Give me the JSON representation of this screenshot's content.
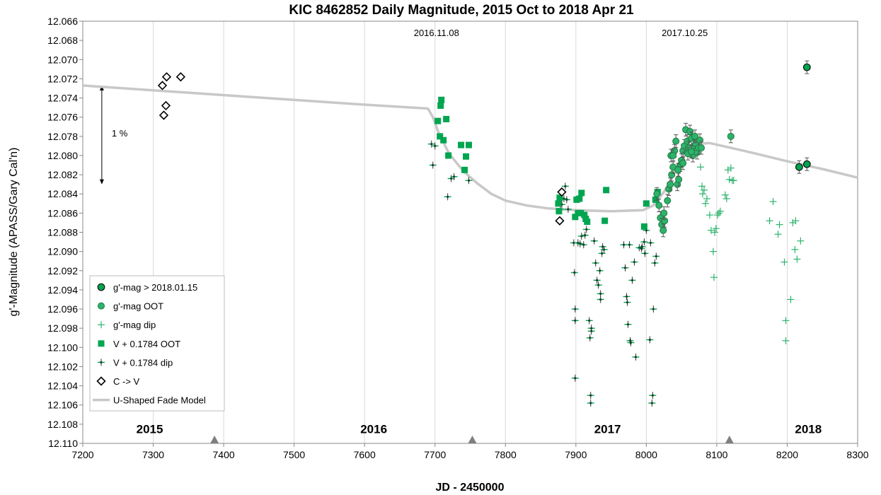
{
  "chart_data": {
    "type": "scatter",
    "title": "KIC 8462852 Daily Magnitude, 2015 Oct to 2018 Apr 21",
    "xlabel": "JD - 2450000",
    "ylabel": "g'-Magnitude  (APASS/Gary Cal'n)",
    "xlim": [
      7200,
      8300
    ],
    "ylim": [
      12.066,
      12.11
    ],
    "y_inverted": true,
    "x_ticks": [
      "7200",
      "7300",
      "7400",
      "7500",
      "7600",
      "7700",
      "7800",
      "7900",
      "8000",
      "8100",
      "8200",
      "8300"
    ],
    "y_ticks": [
      "12.066",
      "12.068",
      "12.070",
      "12.072",
      "12.074",
      "12.076",
      "12.078",
      "12.080",
      "12.082",
      "12.084",
      "12.086",
      "12.088",
      "12.090",
      "12.092",
      "12.094",
      "12.096",
      "12.098",
      "12.100",
      "12.102",
      "12.104",
      "12.106",
      "12.108",
      "12.110"
    ],
    "grid": "vertical",
    "legend_position": "bottom-left",
    "year_labels": [
      {
        "text": "2015",
        "x": 7295
      },
      {
        "text": "2016",
        "x": 7613
      },
      {
        "text": "2017",
        "x": 7945
      },
      {
        "text": "2018",
        "x": 8230
      }
    ],
    "year_markers": [
      7387,
      7753,
      8118
    ],
    "date_annotations": [
      {
        "text": "2016.11.08",
        "x": 7700
      },
      {
        "text": "2017.10.25",
        "x": 8052
      }
    ],
    "scale_bar": {
      "label": "1 %",
      "x": 7227,
      "y_top": 12.0727,
      "y_bottom": 12.083
    },
    "series": [
      {
        "name": "g'-mag > 2018.01.15",
        "marker": "circle-dark",
        "color": "#00a550",
        "points": [
          [
            8228,
            12.0708
          ],
          [
            8217,
            12.0812
          ],
          [
            8228,
            12.0809
          ]
        ]
      },
      {
        "name": "g'-mag OOT",
        "marker": "circle",
        "color": "#2db36b",
        "points": [
          [
            8015,
            12.084
          ],
          [
            8018,
            12.0852
          ],
          [
            8020,
            12.0865
          ],
          [
            8022,
            12.0872
          ],
          [
            8024,
            12.0878
          ],
          [
            8026,
            12.0868
          ],
          [
            8025,
            12.086
          ],
          [
            8030,
            12.0847
          ],
          [
            8032,
            12.0835
          ],
          [
            8034,
            12.083
          ],
          [
            8036,
            12.082
          ],
          [
            8035,
            12.08
          ],
          [
            8038,
            12.0812
          ],
          [
            8040,
            12.0795
          ],
          [
            8042,
            12.0785
          ],
          [
            8044,
            12.083
          ],
          [
            8046,
            12.0825
          ],
          [
            8048,
            12.081
          ],
          [
            8050,
            12.0805
          ],
          [
            8052,
            12.0795
          ],
          [
            8054,
            12.079
          ],
          [
            8056,
            12.0773
          ],
          [
            8058,
            12.0785
          ],
          [
            8060,
            12.0792
          ],
          [
            8062,
            12.0775
          ],
          [
            8064,
            12.0782
          ],
          [
            8066,
            12.08
          ],
          [
            8068,
            12.079
          ],
          [
            8070,
            12.0788
          ],
          [
            8072,
            12.0797
          ],
          [
            8074,
            12.0792
          ],
          [
            8076,
            12.0784
          ],
          [
            8078,
            12.0792
          ],
          [
            8038,
            12.08
          ],
          [
            8045,
            12.0815
          ],
          [
            8052,
            12.0808
          ],
          [
            8059,
            12.0798
          ],
          [
            8064,
            12.0796
          ],
          [
            8069,
            12.078
          ],
          [
            8120,
            12.078
          ]
        ]
      },
      {
        "name": "g'-mag dip",
        "marker": "plus",
        "color": "#2db36b",
        "points": [
          [
            8077,
            12.0812
          ],
          [
            8079,
            12.0832
          ],
          [
            8080,
            12.084
          ],
          [
            8082,
            12.0836
          ],
          [
            8084,
            12.085
          ],
          [
            8086,
            12.0845
          ],
          [
            8090,
            12.0862
          ],
          [
            8092,
            12.0878
          ],
          [
            8095,
            12.09
          ],
          [
            8096,
            12.0927
          ],
          [
            8097,
            12.088
          ],
          [
            8099,
            12.0876
          ],
          [
            8101,
            12.0862
          ],
          [
            8103,
            12.086
          ],
          [
            8105,
            12.0858
          ],
          [
            8112,
            12.0841
          ],
          [
            8114,
            12.0845
          ],
          [
            8116,
            12.0815
          ],
          [
            8118,
            12.0825
          ],
          [
            8120,
            12.0813
          ],
          [
            8122,
            12.0826
          ],
          [
            8124,
            12.0826
          ],
          [
            8175,
            12.0868
          ],
          [
            8180,
            12.0848
          ],
          [
            8187,
            12.0882
          ],
          [
            8189,
            12.0872
          ],
          [
            8196,
            12.0911
          ],
          [
            8198,
            12.0972
          ],
          [
            8198,
            12.0993
          ],
          [
            8205,
            12.095
          ],
          [
            8208,
            12.087
          ],
          [
            8211,
            12.0898
          ],
          [
            8212,
            12.0868
          ],
          [
            8214,
            12.0908
          ],
          [
            8219,
            12.0889
          ]
        ]
      },
      {
        "name": "V + 0.1784 OOT",
        "marker": "square",
        "color": "#00a550",
        "points": [
          [
            7704,
            12.0764
          ],
          [
            7708,
            12.0748
          ],
          [
            7709,
            12.0742
          ],
          [
            7707,
            12.078
          ],
          [
            7712,
            12.0784
          ],
          [
            7716,
            12.0762
          ],
          [
            7719,
            12.08
          ],
          [
            7737,
            12.0789
          ],
          [
            7742,
            12.0815
          ],
          [
            7744,
            12.0801
          ],
          [
            7748,
            12.0789
          ],
          [
            7875,
            12.085
          ],
          [
            7876,
            12.0858
          ],
          [
            7877,
            12.0844
          ],
          [
            7899,
            12.0864
          ],
          [
            7901,
            12.0846
          ],
          [
            7903,
            12.086
          ],
          [
            7905,
            12.0845
          ],
          [
            7907,
            12.086
          ],
          [
            7908,
            12.0839
          ],
          [
            7912,
            12.0862
          ],
          [
            7914,
            12.0866
          ],
          [
            7916,
            12.0869
          ],
          [
            7941,
            12.0868
          ],
          [
            7943,
            12.0836
          ],
          [
            7997,
            12.0874
          ],
          [
            8000,
            12.085
          ],
          [
            8013,
            12.0846
          ],
          [
            8016,
            12.0838
          ]
        ]
      },
      {
        "name": "V + 0.1784 dip",
        "marker": "plus-dark",
        "color": "#00a550",
        "points": [
          [
            7695,
            12.0788
          ],
          [
            7697,
            12.081
          ],
          [
            7700,
            12.079
          ],
          [
            7718,
            12.0843
          ],
          [
            7723,
            12.0824
          ],
          [
            7727,
            12.0822
          ],
          [
            7748,
            12.0826
          ],
          [
            7878,
            12.0856
          ],
          [
            7880,
            12.0851
          ],
          [
            7883,
            12.0845
          ],
          [
            7885,
            12.0832
          ],
          [
            7887,
            12.0846
          ],
          [
            7889,
            12.0856
          ],
          [
            7897,
            12.0891
          ],
          [
            7898,
            12.0922
          ],
          [
            7899,
            12.096
          ],
          [
            7899,
            12.0972
          ],
          [
            7899,
            12.1032
          ],
          [
            7903,
            12.0891
          ],
          [
            7906,
            12.0892
          ],
          [
            7908,
            12.0884
          ],
          [
            7911,
            12.0893
          ],
          [
            7913,
            12.0883
          ],
          [
            7915,
            12.0877
          ],
          [
            7919,
            12.0972
          ],
          [
            7920,
            12.099
          ],
          [
            7922,
            12.0983
          ],
          [
            7922,
            12.098
          ],
          [
            7921,
            12.105
          ],
          [
            7921,
            12.1058
          ],
          [
            7926,
            12.0889
          ],
          [
            7928,
            12.0912
          ],
          [
            7930,
            12.093
          ],
          [
            7932,
            12.0935
          ],
          [
            7934,
            12.092
          ],
          [
            7935,
            12.0944
          ],
          [
            7935,
            12.095
          ],
          [
            7937,
            12.0902
          ],
          [
            7938,
            12.0895
          ],
          [
            7940,
            12.0898
          ],
          [
            7968,
            12.0893
          ],
          [
            7970,
            12.0917
          ],
          [
            7972,
            12.0947
          ],
          [
            7973,
            12.0953
          ],
          [
            7974,
            12.0976
          ],
          [
            7976,
            12.0893
          ],
          [
            7977,
            12.0993
          ],
          [
            7978,
            12.0995
          ],
          [
            7980,
            12.093
          ],
          [
            7983,
            12.0911
          ],
          [
            7985,
            12.101
          ],
          [
            7990,
            12.0896
          ],
          [
            7993,
            12.0897
          ],
          [
            7994,
            12.0895
          ],
          [
            7997,
            12.089
          ],
          [
            7998,
            12.0902
          ],
          [
            8000,
            12.0878
          ],
          [
            8005,
            12.0992
          ],
          [
            8006,
            12.0891
          ],
          [
            8008,
            12.1058
          ],
          [
            8009,
            12.105
          ],
          [
            8010,
            12.096
          ],
          [
            8012,
            12.0912
          ],
          [
            8014,
            12.0905
          ]
        ]
      },
      {
        "name": "C -> V",
        "marker": "diamond-open",
        "color": "#000000",
        "points": [
          [
            7313,
            12.0727
          ],
          [
            7319,
            12.0718
          ],
          [
            7339,
            12.0718
          ],
          [
            7318,
            12.0748
          ],
          [
            7315,
            12.0758
          ],
          [
            7880,
            12.0838
          ],
          [
            7877,
            12.0868
          ]
        ]
      },
      {
        "name": "U-Shaped Fade Model",
        "marker": "line",
        "color": "#c8c8c8",
        "points": [
          [
            7200,
            12.0727
          ],
          [
            7300,
            12.0732
          ],
          [
            7400,
            12.0737
          ],
          [
            7500,
            12.0742
          ],
          [
            7600,
            12.0747
          ],
          [
            7690,
            12.0751
          ],
          [
            7697,
            12.076
          ],
          [
            7705,
            12.0776
          ],
          [
            7720,
            12.0798
          ],
          [
            7740,
            12.0816
          ],
          [
            7760,
            12.0829
          ],
          [
            7780,
            12.084
          ],
          [
            7800,
            12.0847
          ],
          [
            7830,
            12.0852
          ],
          [
            7860,
            12.0855
          ],
          [
            7900,
            12.0857
          ],
          [
            7950,
            12.0858
          ],
          [
            7995,
            12.0857
          ],
          [
            8010,
            12.0852
          ],
          [
            8025,
            12.0838
          ],
          [
            8040,
            12.0818
          ],
          [
            8055,
            12.0798
          ],
          [
            8070,
            12.0788
          ],
          [
            8090,
            12.0787
          ],
          [
            8120,
            12.0792
          ],
          [
            8150,
            12.0797
          ],
          [
            8200,
            12.0806
          ],
          [
            8250,
            12.0814
          ],
          [
            8300,
            12.0823
          ]
        ]
      }
    ]
  }
}
